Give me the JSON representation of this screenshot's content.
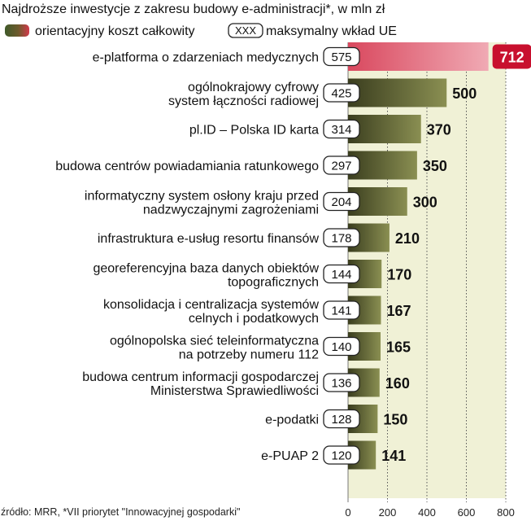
{
  "title": "Najdroższe inwestycje z zakresu budowy e-administracji*, w mln zł",
  "legend": {
    "total_cost_label": "orientacyjny koszt całkowity",
    "eu_badge_sample": "XXX",
    "eu_contribution_label": "maksymalny wkład UE"
  },
  "source": "źródło: MRR, *VII priorytet \"Innowacyjnej gospodarki\"",
  "colors": {
    "bar_gradient_start": "#3a3d1e",
    "bar_gradient_end": "#8a8f52",
    "highlight_start": "#d9485e",
    "highlight_end": "#f0aab4",
    "highlight_badge": "#c8102e",
    "plot_bg": "#f0f1d6"
  },
  "chart_data": {
    "type": "bar",
    "orientation": "horizontal",
    "title": "Najdroższe inwestycje z zakresu budowy e-administracji*, w mln zł",
    "xlim": [
      0,
      800
    ],
    "xticks": [
      0,
      200,
      400,
      600,
      800
    ],
    "grid": true,
    "categories": [
      [
        "e-platforma o zdarzeniach medycznych"
      ],
      [
        "ogólnokrajowy cyfrowy",
        "system łączności radiowej"
      ],
      [
        "pl.ID – Polska ID karta"
      ],
      [
        "budowa centrów powiadamiania ratunkowego"
      ],
      [
        "informatyczny system osłony kraju przed",
        "nadzwyczajnymi zagrożeniami"
      ],
      [
        "infrastruktura e-usług resortu finansów"
      ],
      [
        "georeferencyjna baza danych obiektów",
        "topograficznych"
      ],
      [
        "konsolidacja i centralizacja systemów",
        "celnych i podatkowych"
      ],
      [
        "ogólnopolska sieć teleinformatyczna",
        "na potrzeby numeru  112"
      ],
      [
        "budowa centrum informacji gospodarczej",
        "Ministerstwa Sprawiedliwości"
      ],
      [
        "e-podatki"
      ],
      [
        "e-PUAP 2"
      ]
    ],
    "series": [
      {
        "name": "orientacyjny koszt całkowity",
        "values": [
          712,
          500,
          370,
          350,
          300,
          210,
          170,
          167,
          165,
          160,
          150,
          141
        ]
      },
      {
        "name": "maksymalny wkład UE",
        "values": [
          575,
          425,
          314,
          297,
          204,
          178,
          144,
          141,
          140,
          136,
          128,
          120
        ]
      }
    ],
    "highlight_index": 0
  }
}
